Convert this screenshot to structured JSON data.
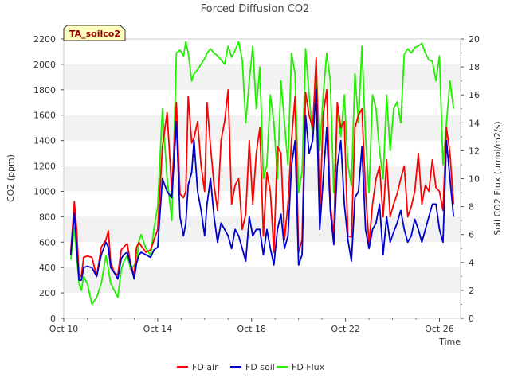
{
  "chart_data": {
    "type": "line",
    "title": "Forced Diffusion CO2",
    "xlabel": "Time",
    "ylabel": "CO2 (ppm)",
    "y2label": "Soil CO2 Flux (umol/m2/s)",
    "annotation": "TA_soilco2",
    "xlim": [
      10.0,
      26.9
    ],
    "ylim": [
      0,
      2200
    ],
    "y2lim": [
      0,
      20
    ],
    "x_ticks": [
      10,
      14,
      18,
      22,
      26
    ],
    "x_tick_labels": [
      "Oct 10",
      "Oct 14",
      "Oct 18",
      "Oct 22",
      "Oct 26"
    ],
    "y_ticks": [
      0,
      200,
      400,
      600,
      800,
      1000,
      1200,
      1400,
      1600,
      1800,
      2000,
      2200
    ],
    "y2_ticks": [
      0,
      2,
      4,
      6,
      8,
      10,
      12,
      14,
      16,
      18,
      20
    ],
    "grid": "horizontal bands",
    "legend_position": "bottom-center",
    "series": [
      {
        "name": "FD air",
        "axis": "left",
        "color": "#ff0000",
        "x": [
          10.3,
          10.45,
          10.55,
          10.65,
          10.75,
          10.85,
          11.0,
          11.2,
          11.4,
          11.6,
          11.8,
          11.9,
          12.0,
          12.15,
          12.3,
          12.45,
          12.55,
          12.7,
          12.85,
          13.0,
          13.1,
          13.2,
          13.3,
          13.5,
          13.7,
          13.85,
          14.0,
          14.2,
          14.4,
          14.6,
          14.8,
          14.95,
          15.1,
          15.2,
          15.3,
          15.45,
          15.55,
          15.7,
          15.85,
          16.0,
          16.1,
          16.25,
          16.4,
          16.55,
          16.7,
          16.85,
          17.0,
          17.15,
          17.3,
          17.45,
          17.6,
          17.75,
          17.9,
          18.05,
          18.2,
          18.35,
          18.5,
          18.65,
          18.8,
          18.95,
          19.1,
          19.25,
          19.4,
          19.55,
          19.7,
          19.85,
          20.0,
          20.15,
          20.3,
          20.45,
          20.6,
          20.75,
          20.9,
          21.05,
          21.2,
          21.35,
          21.5,
          21.65,
          21.8,
          21.95,
          22.1,
          22.25,
          22.4,
          22.55,
          22.7,
          22.85,
          23.0,
          23.15,
          23.3,
          23.45,
          23.6,
          23.75,
          23.9,
          24.05,
          24.2,
          24.35,
          24.5,
          24.65,
          24.8,
          24.95,
          25.1,
          25.25,
          25.4,
          25.55,
          25.7,
          25.85,
          26.0,
          26.15,
          26.3,
          26.45,
          26.6
        ],
        "values": [
          520,
          920,
          700,
          340,
          330,
          480,
          490,
          480,
          330,
          560,
          620,
          690,
          440,
          360,
          340,
          540,
          560,
          590,
          430,
          340,
          560,
          600,
          570,
          520,
          540,
          620,
          700,
          1350,
          1620,
          1000,
          1700,
          980,
          950,
          1000,
          1750,
          1380,
          1420,
          1550,
          1200,
          1000,
          1700,
          1350,
          1050,
          850,
          1400,
          1550,
          1800,
          900,
          1050,
          1100,
          700,
          820,
          1400,
          900,
          1300,
          1500,
          650,
          1150,
          1000,
          520,
          1350,
          1300,
          620,
          900,
          1400,
          1750,
          520,
          620,
          1780,
          1600,
          1500,
          2050,
          800,
          1600,
          1800,
          900,
          650,
          1700,
          1500,
          1550,
          650,
          640,
          1500,
          1600,
          1650,
          1000,
          580,
          900,
          1100,
          1200,
          800,
          1250,
          800,
          900,
          980,
          1100,
          1200,
          800,
          880,
          1000,
          1300,
          900,
          1050,
          1000,
          1250,
          1030,
          1000,
          850,
          1500,
          1300,
          900
        ]
      },
      {
        "name": "FD soil",
        "axis": "left",
        "color": "#0000cc",
        "x": [
          10.3,
          10.45,
          10.55,
          10.65,
          10.75,
          10.85,
          11.0,
          11.2,
          11.4,
          11.6,
          11.8,
          11.9,
          12.0,
          12.15,
          12.3,
          12.45,
          12.55,
          12.7,
          12.85,
          13.0,
          13.1,
          13.2,
          13.3,
          13.5,
          13.7,
          13.85,
          14.0,
          14.2,
          14.4,
          14.6,
          14.8,
          14.95,
          15.1,
          15.2,
          15.3,
          15.45,
          15.55,
          15.7,
          15.85,
          16.0,
          16.1,
          16.25,
          16.4,
          16.55,
          16.7,
          16.85,
          17.0,
          17.15,
          17.3,
          17.45,
          17.6,
          17.75,
          17.9,
          18.05,
          18.2,
          18.35,
          18.5,
          18.65,
          18.8,
          18.95,
          19.1,
          19.25,
          19.4,
          19.55,
          19.7,
          19.85,
          20.0,
          20.15,
          20.3,
          20.45,
          20.6,
          20.75,
          20.9,
          21.05,
          21.2,
          21.35,
          21.5,
          21.65,
          21.8,
          21.95,
          22.1,
          22.25,
          22.4,
          22.55,
          22.7,
          22.85,
          23.0,
          23.15,
          23.3,
          23.45,
          23.6,
          23.75,
          23.9,
          24.05,
          24.2,
          24.35,
          24.5,
          24.65,
          24.8,
          24.95,
          25.1,
          25.25,
          25.4,
          25.55,
          25.7,
          25.85,
          26.0,
          26.15,
          26.3,
          26.45,
          26.6
        ],
        "values": [
          500,
          830,
          560,
          300,
          300,
          400,
          410,
          400,
          330,
          500,
          600,
          560,
          400,
          360,
          310,
          470,
          500,
          520,
          420,
          310,
          430,
          500,
          520,
          500,
          480,
          540,
          560,
          1100,
          1000,
          950,
          1550,
          800,
          650,
          750,
          1050,
          1150,
          1400,
          1000,
          850,
          650,
          900,
          1100,
          800,
          600,
          750,
          700,
          650,
          550,
          700,
          650,
          550,
          450,
          800,
          650,
          700,
          700,
          500,
          700,
          550,
          420,
          700,
          820,
          550,
          650,
          1200,
          1400,
          420,
          500,
          1600,
          1300,
          1400,
          1800,
          700,
          1100,
          1500,
          850,
          580,
          1200,
          1400,
          900,
          620,
          450,
          950,
          1000,
          1350,
          700,
          550,
          700,
          750,
          900,
          500,
          800,
          600,
          680,
          750,
          850,
          700,
          600,
          650,
          780,
          700,
          600,
          700,
          800,
          900,
          900,
          700,
          600,
          1400,
          1100,
          800
        ]
      },
      {
        "name": "FD Flux",
        "axis": "right",
        "color": "#22ee00",
        "x": [
          10.3,
          10.45,
          10.55,
          10.65,
          10.75,
          10.85,
          11.0,
          11.2,
          11.4,
          11.6,
          11.8,
          11.9,
          12.0,
          12.15,
          12.3,
          12.45,
          12.55,
          12.7,
          12.85,
          13.0,
          13.1,
          13.2,
          13.3,
          13.5,
          13.7,
          13.85,
          14.0,
          14.2,
          14.4,
          14.6,
          14.8,
          14.95,
          15.1,
          15.2,
          15.3,
          15.45,
          15.55,
          15.7,
          15.85,
          16.0,
          16.1,
          16.25,
          16.4,
          16.55,
          16.7,
          16.85,
          17.0,
          17.15,
          17.3,
          17.45,
          17.6,
          17.75,
          17.9,
          18.05,
          18.2,
          18.35,
          18.5,
          18.65,
          18.8,
          18.95,
          19.1,
          19.25,
          19.4,
          19.55,
          19.7,
          19.85,
          20.0,
          20.15,
          20.3,
          20.45,
          20.6,
          20.75,
          20.9,
          21.05,
          21.2,
          21.35,
          21.5,
          21.65,
          21.8,
          21.95,
          22.1,
          22.25,
          22.4,
          22.55,
          22.7,
          22.85,
          23.0,
          23.15,
          23.3,
          23.45,
          23.6,
          23.75,
          23.9,
          24.05,
          24.2,
          24.35,
          24.5,
          24.65,
          24.8,
          24.95,
          25.1,
          25.25,
          25.4,
          25.55,
          25.7,
          25.85,
          26.0,
          26.15,
          26.3,
          26.45,
          26.6
        ],
        "values": [
          4.2,
          6.5,
          4.5,
          2.5,
          2.0,
          3.0,
          2.5,
          1.0,
          1.5,
          2.5,
          4.5,
          3.5,
          2.5,
          2.0,
          1.5,
          3.5,
          4.0,
          4.5,
          3.5,
          3.8,
          4.0,
          5.5,
          6.0,
          5.0,
          4.5,
          6.5,
          8.0,
          15.0,
          10.0,
          7.0,
          19.0,
          19.2,
          18.8,
          19.8,
          19.0,
          17.0,
          17.5,
          17.8,
          18.2,
          18.6,
          19.0,
          19.3,
          19.0,
          18.8,
          18.5,
          18.2,
          19.5,
          18.7,
          19.2,
          19.8,
          18.5,
          14.0,
          17.0,
          19.5,
          15.0,
          18.0,
          10.0,
          11.0,
          16.0,
          14.0,
          10.0,
          17.0,
          14.0,
          11.0,
          19.0,
          17.5,
          9.0,
          10.5,
          19.3,
          16.0,
          13.0,
          18.0,
          12.0,
          16.0,
          19.0,
          17.0,
          9.0,
          15.0,
          13.0,
          16.0,
          11.0,
          9.5,
          17.5,
          14.0,
          19.5,
          13.0,
          9.0,
          16.0,
          15.0,
          12.0,
          10.0,
          16.0,
          12.0,
          15.0,
          15.5,
          14.0,
          18.9,
          19.3,
          19.0,
          19.4,
          19.5,
          19.7,
          19.0,
          18.5,
          18.4,
          17.0,
          18.8,
          11.0,
          14.0,
          17.0,
          15.0
        ]
      }
    ]
  }
}
